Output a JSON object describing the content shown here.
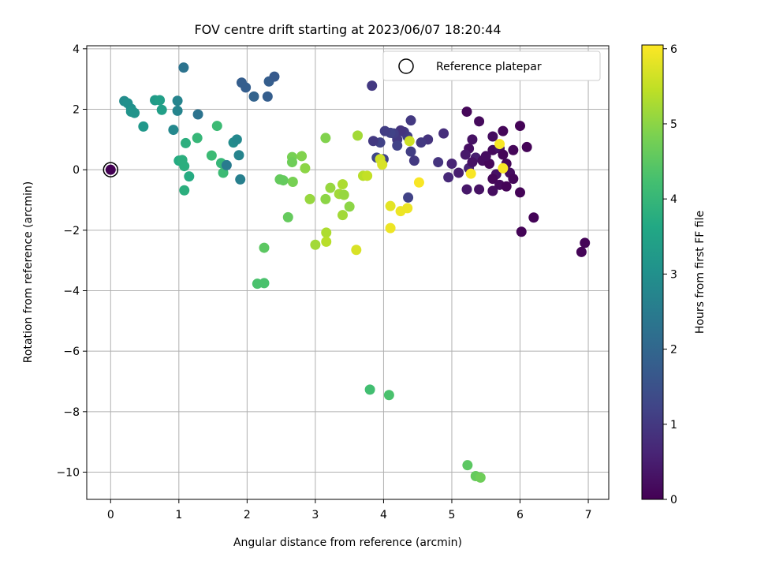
{
  "chart_data": {
    "type": "scatter",
    "title": "FOV centre drift starting at 2023/06/07 18:20:44",
    "xlabel": "Angular distance from reference (arcmin)",
    "ylabel": "Rotation from reference (arcmin)",
    "xlim": [
      -0.35,
      7.3
    ],
    "ylim": [
      -10.9,
      4.1
    ],
    "xticks": [
      0,
      1,
      2,
      3,
      4,
      5,
      6,
      7
    ],
    "yticks": [
      4,
      2,
      0,
      -2,
      -4,
      -6,
      -8,
      -10
    ],
    "grid": true,
    "legend": {
      "position": "top-right",
      "entries": [
        "Reference platepar"
      ]
    },
    "colorbar": {
      "label": "Hours from first FF file",
      "min": 0,
      "max": 6.05,
      "ticks": [
        0,
        1,
        2,
        3,
        4,
        5,
        6
      ],
      "colormap": "viridis"
    },
    "reference_point": {
      "x": 0,
      "y": 0,
      "hours": 0
    },
    "points": [
      [
        5.22,
        1.92,
        0.1
      ],
      [
        5.4,
        1.6,
        0.15
      ],
      [
        5.6,
        1.1,
        0.2
      ],
      [
        5.75,
        1.28,
        0.1
      ],
      [
        6,
        1.45,
        0.05
      ],
      [
        5.3,
        1.0,
        0.3
      ],
      [
        5.25,
        0.7,
        0.25
      ],
      [
        5.2,
        0.5,
        0.4
      ],
      [
        5.35,
        0.4,
        0.5
      ],
      [
        5.45,
        0.3,
        0.2
      ],
      [
        5.55,
        0.2,
        0.1
      ],
      [
        5.6,
        0.65,
        0.15
      ],
      [
        5.7,
        0.7,
        0.3
      ],
      [
        5.75,
        0.5,
        0.05
      ],
      [
        5.8,
        0.2,
        0.1
      ],
      [
        5.85,
        -0.1,
        0.2
      ],
      [
        5.65,
        -0.15,
        0.3
      ],
      [
        5.6,
        -0.3,
        0.1
      ],
      [
        5.7,
        -0.5,
        0.15
      ],
      [
        5.8,
        -0.55,
        0.05
      ],
      [
        5.9,
        -0.3,
        0.1
      ],
      [
        6.0,
        -0.75,
        0.05
      ],
      [
        5.6,
        -0.7,
        0.2
      ],
      [
        5.4,
        -0.65,
        0.3
      ],
      [
        5.22,
        -0.65,
        0.4
      ],
      [
        5.1,
        -0.1,
        0.5
      ],
      [
        5.25,
        0.05,
        0.6
      ],
      [
        5.3,
        0.25,
        0.3
      ],
      [
        5.5,
        0.45,
        0.2
      ],
      [
        5.9,
        0.65,
        0.1
      ],
      [
        6.1,
        0.75,
        0.05
      ],
      [
        6.2,
        -1.58,
        0.05
      ],
      [
        6.02,
        -2.05,
        0.05
      ],
      [
        6.9,
        -2.72,
        0.05
      ],
      [
        6.95,
        -2.42,
        0.05
      ],
      [
        5.0,
        0.2,
        0.6
      ],
      [
        4.95,
        -0.25,
        0.7
      ],
      [
        4.88,
        1.2,
        0.8
      ],
      [
        4.8,
        0.25,
        0.9
      ],
      [
        4.65,
        1.0,
        0.9
      ],
      [
        4.55,
        0.9,
        1.0
      ],
      [
        4.45,
        0.3,
        1.0
      ],
      [
        4.4,
        0.6,
        1.1
      ],
      [
        4.4,
        1.63,
        1.0
      ],
      [
        4.35,
        1.1,
        1.1
      ],
      [
        4.3,
        1.25,
        1.0
      ],
      [
        4.25,
        1.3,
        0.9
      ],
      [
        4.2,
        1.0,
        1.0
      ],
      [
        4.15,
        1.2,
        1.1
      ],
      [
        4.1,
        1.22,
        1.2
      ],
      [
        4.2,
        0.8,
        1.2
      ],
      [
        4.02,
        1.28,
        1.1
      ],
      [
        3.95,
        0.9,
        1.2
      ],
      [
        3.85,
        0.95,
        1.0
      ],
      [
        3.9,
        0.4,
        1.3
      ],
      [
        4.36,
        -0.92,
        1.2
      ],
      [
        3.83,
        2.78,
        1.0
      ],
      [
        4.0,
        0.35,
        1.2
      ],
      [
        5.7,
        0.85,
        6.0
      ],
      [
        5.28,
        -0.13,
        6.0
      ],
      [
        5.75,
        0.05,
        6.0
      ],
      [
        1.92,
        2.88,
        1.8
      ],
      [
        1.98,
        2.72,
        1.8
      ],
      [
        2.1,
        2.42,
        1.9
      ],
      [
        2.32,
        2.92,
        1.8
      ],
      [
        2.4,
        3.08,
        1.7
      ],
      [
        2.3,
        2.42,
        1.8
      ],
      [
        1.07,
        3.38,
        2.3
      ],
      [
        1.28,
        1.83,
        2.3
      ],
      [
        0.98,
        2.28,
        2.7
      ],
      [
        0.98,
        1.95,
        2.7
      ],
      [
        0.92,
        1.32,
        2.8
      ],
      [
        0.2,
        2.27,
        2.9
      ],
      [
        0.25,
        2.2,
        3.0
      ],
      [
        0.3,
        2.02,
        3.0
      ],
      [
        0.3,
        1.92,
        3.1
      ],
      [
        0.35,
        1.88,
        3.1
      ],
      [
        0.48,
        1.43,
        3.2
      ],
      [
        0.65,
        2.3,
        3.3
      ],
      [
        0.72,
        2.3,
        3.4
      ],
      [
        0.75,
        1.98,
        3.4
      ],
      [
        1.0,
        0.3,
        3.7
      ],
      [
        1.05,
        0.32,
        3.8
      ],
      [
        1.08,
        0.12,
        3.8
      ],
      [
        1.15,
        -0.22,
        3.7
      ],
      [
        1.08,
        -0.68,
        3.8
      ],
      [
        1.1,
        0.88,
        3.8
      ],
      [
        1.27,
        1.05,
        4.0
      ],
      [
        1.56,
        1.45,
        4.1
      ],
      [
        1.48,
        0.47,
        4.1
      ],
      [
        1.62,
        0.22,
        4.0
      ],
      [
        1.65,
        -0.1,
        4.1
      ],
      [
        1.8,
        0.9,
        2.9
      ],
      [
        1.85,
        1.0,
        2.8
      ],
      [
        1.88,
        0.48,
        2.7
      ],
      [
        1.7,
        0.15,
        2.5
      ],
      [
        1.9,
        -0.32,
        2.6
      ],
      [
        2.25,
        -2.58,
        4.5
      ],
      [
        2.15,
        -3.77,
        4.3
      ],
      [
        2.25,
        -3.75,
        4.3
      ],
      [
        3.8,
        -7.27,
        4.2
      ],
      [
        4.08,
        -7.45,
        4.3
      ],
      [
        5.23,
        -9.77,
        4.5
      ],
      [
        5.35,
        -10.13,
        4.6
      ],
      [
        5.42,
        -10.18,
        4.7
      ],
      [
        2.48,
        -0.32,
        4.6
      ],
      [
        2.53,
        -0.35,
        4.6
      ],
      [
        2.6,
        -1.57,
        4.6
      ],
      [
        2.66,
        0.42,
        4.8
      ],
      [
        2.66,
        0.25,
        4.7
      ],
      [
        2.8,
        0.45,
        4.9
      ],
      [
        2.85,
        0.05,
        5.0
      ],
      [
        2.67,
        -0.4,
        4.8
      ],
      [
        3.15,
        1.05,
        4.9
      ],
      [
        3.0,
        -2.48,
        5.2
      ],
      [
        2.92,
        -0.97,
        5.1
      ],
      [
        3.15,
        -0.97,
        5.0
      ],
      [
        3.22,
        -0.6,
        5.1
      ],
      [
        3.35,
        -0.8,
        5.2
      ],
      [
        3.4,
        -0.48,
        5.3
      ],
      [
        3.42,
        -0.83,
        5.1
      ],
      [
        3.4,
        -1.5,
        5.2
      ],
      [
        3.5,
        -1.22,
        5.0
      ],
      [
        3.16,
        -2.08,
        5.3
      ],
      [
        3.16,
        -2.38,
        5.4
      ],
      [
        3.6,
        -2.65,
        5.7
      ],
      [
        3.62,
        1.13,
        5.2
      ],
      [
        3.7,
        -0.2,
        5.4
      ],
      [
        3.76,
        -0.2,
        5.5
      ],
      [
        3.95,
        0.35,
        5.6
      ],
      [
        3.98,
        0.17,
        5.7
      ],
      [
        4.1,
        -1.2,
        5.8
      ],
      [
        4.1,
        -1.93,
        5.9
      ],
      [
        4.25,
        -1.37,
        5.9
      ],
      [
        4.35,
        -1.27,
        5.9
      ],
      [
        4.52,
        -0.42,
        6.0
      ],
      [
        4.38,
        0.95,
        5.6
      ]
    ]
  }
}
